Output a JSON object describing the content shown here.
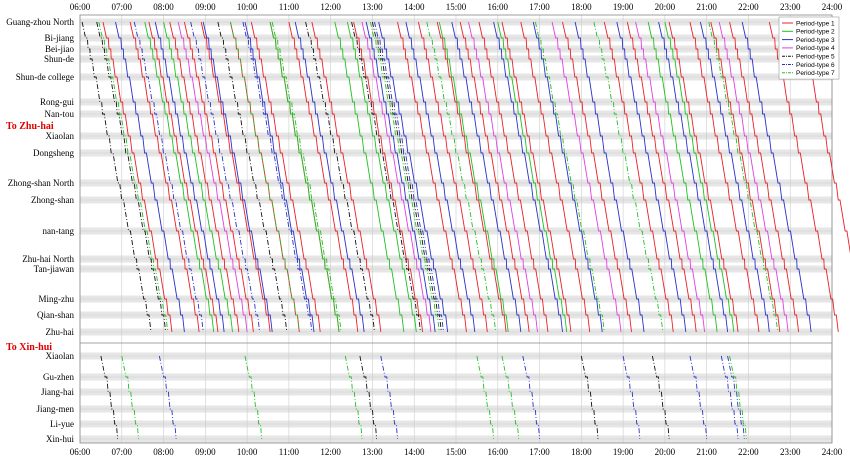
{
  "chart_data": {
    "type": "line",
    "x_ticks": [
      "06:00",
      "07:00",
      "08:00",
      "09:00",
      "10:00",
      "11:00",
      "12:00",
      "13:00",
      "14:00",
      "15:00",
      "16:00",
      "17:00",
      "18:00",
      "19:00",
      "20:00",
      "21:00",
      "22:00",
      "23:00",
      "24:00"
    ],
    "xlim": [
      6,
      24
    ],
    "direction_labels": [
      "To Zhu-hai",
      "To Xin-hui"
    ],
    "stations_zhuhai": [
      {
        "name": "Guang-zhou North",
        "pos": 0
      },
      {
        "name": "Bi-jiang",
        "pos": 16
      },
      {
        "name": "Bei-jiao",
        "pos": 27
      },
      {
        "name": "Shun-de",
        "pos": 37
      },
      {
        "name": "Shun-de college",
        "pos": 55
      },
      {
        "name": "Rong-gui",
        "pos": 80
      },
      {
        "name": "Nan-tou",
        "pos": 92
      },
      {
        "name": "Xiaolan",
        "pos": 114
      },
      {
        "name": "Dongsheng",
        "pos": 131
      },
      {
        "name": "Zhong-shan North",
        "pos": 161
      },
      {
        "name": "Zhong-shan",
        "pos": 178
      },
      {
        "name": "nan-tang",
        "pos": 209
      },
      {
        "name": "Zhu-hai North",
        "pos": 237
      },
      {
        "name": "Tan-jiawan",
        "pos": 247
      },
      {
        "name": "Ming-zhu",
        "pos": 277
      },
      {
        "name": "Qian-shan",
        "pos": 293
      },
      {
        "name": "Zhu-hai",
        "pos": 310
      }
    ],
    "stations_xinhui": [
      {
        "name": "Xiaolan",
        "pos": 0
      },
      {
        "name": "Gu-zhen",
        "pos": 21
      },
      {
        "name": "Jiang-hai",
        "pos": 36
      },
      {
        "name": "Jiang-men",
        "pos": 53
      },
      {
        "name": "Li-yue",
        "pos": 68
      },
      {
        "name": "Xin-hui",
        "pos": 83
      }
    ],
    "series": [
      {
        "name": "Period-type 1",
        "color": "#e8222a",
        "dash": "",
        "zhuhai": [
          6.55,
          7.2,
          7.65,
          8.15,
          8.5,
          8.9,
          9.6,
          10.1,
          10.55,
          11.0,
          11.55,
          12.55,
          13.6,
          14.1,
          14.55,
          15.1,
          15.55,
          16.1,
          16.55,
          17.55,
          18.55,
          19.1,
          20.1,
          20.6,
          21.1,
          21.55,
          22.5,
          23.2
        ],
        "xinhui": []
      },
      {
        "name": "Period-type 2",
        "color": "#22c022",
        "dash": "",
        "zhuhai": [
          7.55,
          8.0,
          10.55,
          12.1,
          12.4,
          14.6,
          16.0,
          19.6,
          20.0
        ],
        "xinhui": []
      },
      {
        "name": "Period-type 3",
        "color": "#2a32c8",
        "dash": "",
        "zhuhai": [
          6.85,
          7.8,
          8.95,
          9.95,
          11.15,
          12.85,
          13.15,
          13.8,
          14.9,
          15.9,
          16.85,
          17.85,
          18.85,
          19.85,
          20.85,
          21.85
        ],
        "xinhui": []
      },
      {
        "name": "Period-type 4",
        "color": "#e040e0",
        "dash": "",
        "zhuhai": [
          8.35,
          12.75,
          15.3,
          17.3,
          19.3,
          21.3
        ],
        "xinhui": []
      },
      {
        "name": "Period-type 5",
        "color": "#111111",
        "dash": "5,2,1,2",
        "zhuhai": [
          6.05,
          6.4,
          9.3,
          11.4,
          12.5,
          13.0
        ],
        "xinhui": [
          6.5,
          12.7,
          18.0,
          19.7
        ]
      },
      {
        "name": "Period-type 6",
        "color": "#2a32c8",
        "dash": "5,2,1,2",
        "zhuhai": [
          7.3,
          8.65,
          9.9,
          13.05
        ],
        "xinhui": [
          7.9,
          13.2,
          16.6,
          19.0,
          20.6,
          21.35,
          21.5
        ]
      },
      {
        "name": "Period-type 7",
        "color": "#22c022",
        "dash": "5,2,1,2",
        "zhuhai": [
          6.45,
          9.6,
          10.6,
          12.95,
          14.3,
          16.9,
          18.3,
          21.05
        ],
        "xinhui": [
          7.0,
          9.95,
          12.35,
          15.5,
          16.1,
          21.55
        ]
      }
    ],
    "legend_position": "top-right",
    "grid": true
  }
}
